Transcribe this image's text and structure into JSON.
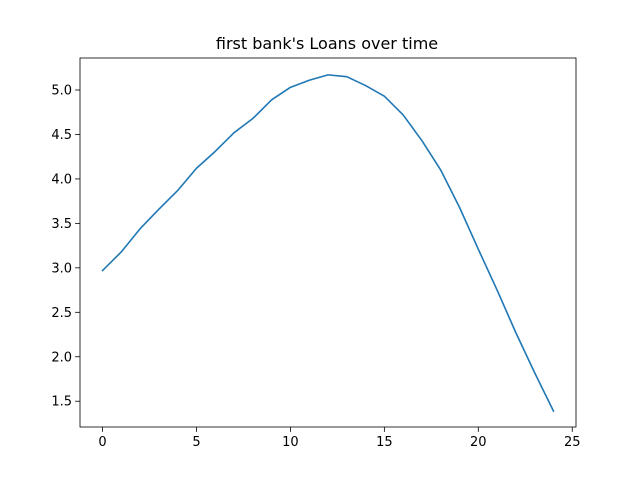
{
  "chart_data": {
    "type": "line",
    "title": "first bank's Loans over time",
    "xlabel": "",
    "ylabel": "",
    "xlim": [
      -1.2,
      25.2
    ],
    "ylim": [
      1.21,
      5.36
    ],
    "x_ticks": [
      0,
      5,
      10,
      15,
      20,
      25
    ],
    "y_ticks": [
      1.5,
      2.0,
      2.5,
      3.0,
      3.5,
      4.0,
      4.5,
      5.0
    ],
    "grid": false,
    "legend": "none",
    "series": [
      {
        "color": "#1f77b4",
        "x": [
          0,
          1,
          2,
          3,
          4,
          5,
          6,
          7,
          8,
          9,
          10,
          11,
          12,
          13,
          14,
          15,
          16,
          17,
          18,
          19,
          20,
          21,
          22,
          23,
          24
        ],
        "values": [
          2.97,
          3.18,
          3.44,
          3.66,
          3.87,
          4.12,
          4.31,
          4.52,
          4.68,
          4.89,
          5.03,
          5.11,
          5.17,
          5.15,
          5.05,
          4.93,
          4.72,
          4.43,
          4.1,
          3.68,
          3.21,
          2.75,
          2.27,
          1.82,
          1.39
        ]
      }
    ]
  }
}
